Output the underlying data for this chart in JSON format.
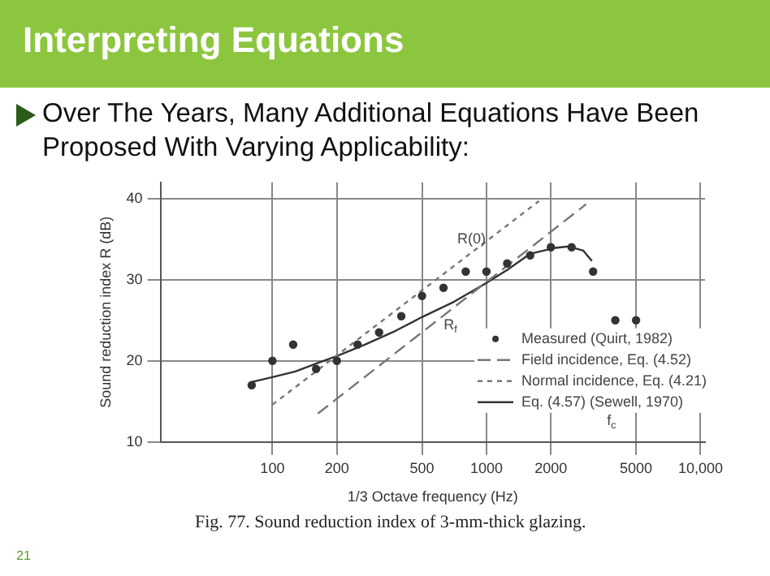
{
  "chart_data": {
    "type": "scatter",
    "title": "Interpreting Equations",
    "subtitle": "Over The Years, Many Additional Equations Have Been Proposed With Varying Applicability:",
    "xlabel": "1/3 Octave frequency (Hz)",
    "ylabel": "Sound reduction index R (dB)",
    "log": "x",
    "xlim": [
      30,
      10500
    ],
    "ylim": [
      10,
      42
    ],
    "xticks": [
      100,
      200,
      500,
      1000,
      2000,
      5000,
      {
        "value": 10000,
        "label": "10,000"
      }
    ],
    "yticks": [
      10,
      20,
      30,
      40
    ],
    "grid": true,
    "legend": "bottom right",
    "series": [
      {
        "name": "Measured (Quirt, 1982)",
        "type": "scatter",
        "marker": "circle",
        "color": "#333333",
        "x": [
          80,
          100,
          125,
          160,
          200,
          250,
          315,
          400,
          500,
          630,
          800,
          1000,
          1250,
          1600,
          2000,
          2500,
          3150,
          4000,
          5000
        ],
        "values": [
          17,
          20,
          22,
          19,
          20,
          22,
          23.5,
          25.5,
          28,
          29,
          31,
          31,
          32,
          33,
          34,
          34,
          31,
          25,
          25
        ]
      },
      {
        "name": "Field incidence, Eq. (4.52)",
        "type": "line",
        "line_style": "dashed",
        "marker": "none",
        "color": "#777777",
        "x": [
          163,
          2920
        ],
        "values": [
          13.5,
          39.3
        ]
      },
      {
        "name": "Normal incidence, Eq. (4.21)",
        "type": "line",
        "line_style": "dotted",
        "marker": "none",
        "color": "#777777",
        "x": [
          100,
          1760
        ],
        "values": [
          14.6,
          39.7
        ]
      },
      {
        "name": "Eq. (4.57) (Sewell, 1970)",
        "type": "line",
        "line_style": "solid",
        "marker": "none",
        "color": "#333333",
        "x": [
          80,
          100,
          128,
          165,
          200,
          270,
          376,
          500,
          707,
          1000,
          1250,
          1600,
          2065,
          2420,
          2830,
          3110
        ],
        "values": [
          17.4,
          18,
          18.7,
          19.8,
          20.6,
          22,
          23.7,
          25.4,
          27.3,
          29.6,
          31.2,
          33.2,
          33.9,
          34.1,
          33.6,
          32.3
        ]
      }
    ],
    "annotations": [
      "R(0)",
      "R$_{f}$",
      "f$_{c}$",
      "Fig. 77.  Sound reduction index of 3-mm-thick glazing.",
      "21"
    ]
  }
}
